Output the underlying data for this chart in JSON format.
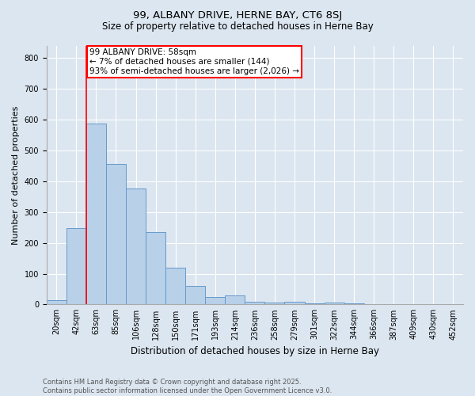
{
  "title1": "99, ALBANY DRIVE, HERNE BAY, CT6 8SJ",
  "title2": "Size of property relative to detached houses in Herne Bay",
  "xlabel": "Distribution of detached houses by size in Herne Bay",
  "ylabel": "Number of detached properties",
  "footer1": "Contains HM Land Registry data © Crown copyright and database right 2025.",
  "footer2": "Contains public sector information licensed under the Open Government Licence v3.0.",
  "bin_labels": [
    "20sqm",
    "42sqm",
    "63sqm",
    "85sqm",
    "106sqm",
    "128sqm",
    "150sqm",
    "171sqm",
    "193sqm",
    "214sqm",
    "236sqm",
    "258sqm",
    "279sqm",
    "301sqm",
    "322sqm",
    "344sqm",
    "366sqm",
    "387sqm",
    "409sqm",
    "430sqm",
    "452sqm"
  ],
  "bar_values": [
    14,
    248,
    588,
    455,
    376,
    235,
    120,
    60,
    25,
    30,
    8,
    5,
    8,
    4,
    5,
    4,
    2,
    1,
    0,
    0,
    0
  ],
  "bar_color": "#b8d0e8",
  "bar_edgecolor": "#6699cc",
  "annotation_text": "99 ALBANY DRIVE: 58sqm\n← 7% of detached houses are smaller (144)\n93% of semi-detached houses are larger (2,026) →",
  "annotation_box_color": "white",
  "annotation_box_edgecolor": "red",
  "vline_color": "red",
  "ylim": [
    0,
    840
  ],
  "background_color": "#dce6f0",
  "plot_background": "#dce6f0",
  "grid_color": "white",
  "title1_fontsize": 9.5,
  "title2_fontsize": 8.5,
  "tick_fontsize": 7,
  "ylabel_fontsize": 8,
  "xlabel_fontsize": 8.5,
  "annotation_fontsize": 7.5,
  "footer_fontsize": 6
}
